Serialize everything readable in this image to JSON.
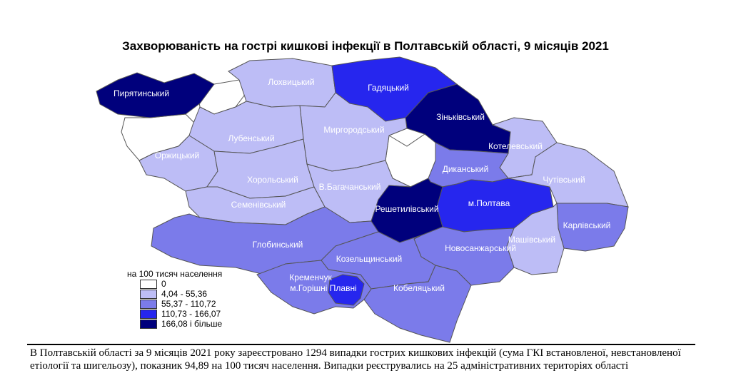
{
  "title": "Захворюваність на гострі кишкові інфекції в Полтавській області, 9 місяців 2021",
  "legend": {
    "title": "на 100 тисяч населення",
    "classes": [
      {
        "label": "0",
        "color": "#ffffff"
      },
      {
        "label": "4,04 - 55,36",
        "color": "#bdbdf6"
      },
      {
        "label": "55,37 - 110,72",
        "color": "#7b7bea"
      },
      {
        "label": "110,73 - 166,07",
        "color": "#2626ee"
      },
      {
        "label": "166,08 і більше",
        "color": "#00007c"
      }
    ]
  },
  "regions": [
    {
      "name": "Пирятинський",
      "class": 4
    },
    {
      "name": "Лохвицький",
      "class": 1
    },
    {
      "name": "Гадяцький",
      "class": 3
    },
    {
      "name": "Зіньківський",
      "class": 4
    },
    {
      "name": "Котелевський",
      "class": 1
    },
    {
      "name": "Миргородський",
      "class": 1
    },
    {
      "name": "Лубенський",
      "class": 1
    },
    {
      "name": "Оржицький",
      "class": 1
    },
    {
      "name": "Хорольський",
      "class": 1
    },
    {
      "name": "Семенівський",
      "class": 1
    },
    {
      "name": "В.Багачанський",
      "class": 1
    },
    {
      "name": "Диканський",
      "class": 2
    },
    {
      "name": "Решетилівський",
      "class": 4
    },
    {
      "name": "м.Полтава",
      "class": 3
    },
    {
      "name": "Чутівський",
      "class": 1
    },
    {
      "name": "Карлівський",
      "class": 2
    },
    {
      "name": "Машівський",
      "class": 1
    },
    {
      "name": "Новосанжарський",
      "class": 2
    },
    {
      "name": "Глобинський",
      "class": 2
    },
    {
      "name": "Козельщинський",
      "class": 2
    },
    {
      "name": "Кобеляцький",
      "class": 2
    },
    {
      "name": "Кременчук",
      "class": 2
    },
    {
      "name": "м.Горішні Плавні",
      "class": 3
    }
  ],
  "note": "В Полтавській області за 9 місяців 2021 року зареєстровано 1294 випадки гострих кишкових інфекцій (сума ГКІ встановленої, невстановленої етіології та шигельозу), показник 94,89 на 100 тисяч населення. Випадки реєструвались на 25 адміністративних територіях області"
}
